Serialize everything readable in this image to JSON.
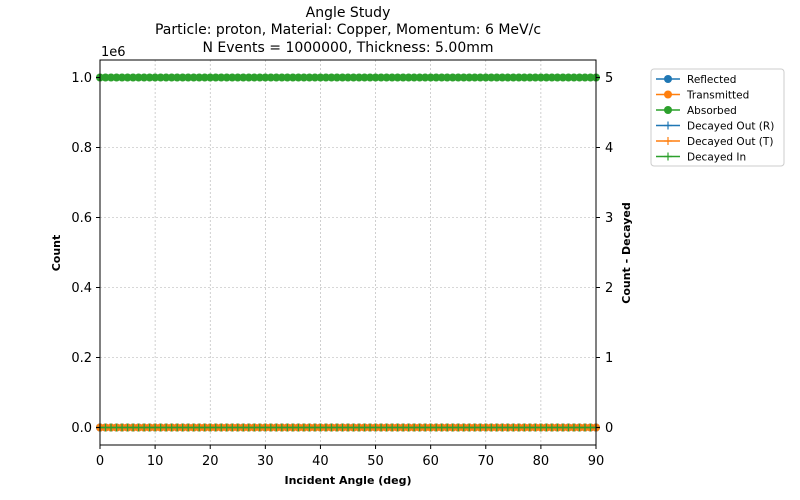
{
  "chart_data": {
    "type": "line",
    "title_lines": [
      "Angle Study",
      "Particle: proton, Material: Copper, Momentum: 6 MeV/c",
      "N Events = 1000000, Thickness: 5.00mm"
    ],
    "xlabel": "Incident Angle (deg)",
    "ylabel_left": "Count",
    "ylabel_right": "Count - Decayed",
    "ylabel_right_color": "#ff0000",
    "left_exponent_label": "1e6",
    "xlim": [
      0,
      90
    ],
    "ylim_left": [
      -50000,
      1050000
    ],
    "ylim_right": [
      -0.25,
      5.25
    ],
    "x_ticks": [
      0,
      10,
      20,
      30,
      40,
      50,
      60,
      70,
      80,
      90
    ],
    "y_ticks_left": [
      0,
      200000,
      400000,
      600000,
      800000,
      1000000
    ],
    "y_tick_labels_left": [
      "0.0",
      "0.2",
      "0.4",
      "0.6",
      "0.8",
      "1.0"
    ],
    "y_ticks_right": [
      0,
      1,
      2,
      3,
      4,
      5
    ],
    "y_tick_labels_right": [
      "0",
      "1",
      "2",
      "3",
      "4",
      "5"
    ],
    "grid": true,
    "legend_position": "outside-right-top",
    "x": [
      0,
      1,
      2,
      3,
      4,
      5,
      6,
      7,
      8,
      9,
      10,
      11,
      12,
      13,
      14,
      15,
      16,
      17,
      18,
      19,
      20,
      21,
      22,
      23,
      24,
      25,
      26,
      27,
      28,
      29,
      30,
      31,
      32,
      33,
      34,
      35,
      36,
      37,
      38,
      39,
      40,
      41,
      42,
      43,
      44,
      45,
      46,
      47,
      48,
      49,
      50,
      51,
      52,
      53,
      54,
      55,
      56,
      57,
      58,
      59,
      60,
      61,
      62,
      63,
      64,
      65,
      66,
      67,
      68,
      69,
      70,
      71,
      72,
      73,
      74,
      75,
      76,
      77,
      78,
      79,
      80,
      81,
      82,
      83,
      84,
      85,
      86,
      87,
      88,
      89,
      90
    ],
    "series": [
      {
        "name": "Reflected",
        "axis": "left",
        "marker": "circle",
        "color": "#1f77b4",
        "constant": 0
      },
      {
        "name": "Transmitted",
        "axis": "left",
        "marker": "circle",
        "color": "#ff7f0e",
        "constant": 0
      },
      {
        "name": "Absorbed",
        "axis": "left",
        "marker": "circle",
        "color": "#2ca02c",
        "constant": 1000000
      },
      {
        "name": "Decayed Out (R)",
        "axis": "right",
        "marker": "plus",
        "color": "#1f77b4",
        "constant": 0
      },
      {
        "name": "Decayed Out (T)",
        "axis": "right",
        "marker": "plus",
        "color": "#ff7f0e",
        "constant": 0
      },
      {
        "name": "Decayed In",
        "axis": "right",
        "marker": "plus",
        "color": "#2ca02c",
        "constant": 0
      }
    ]
  }
}
